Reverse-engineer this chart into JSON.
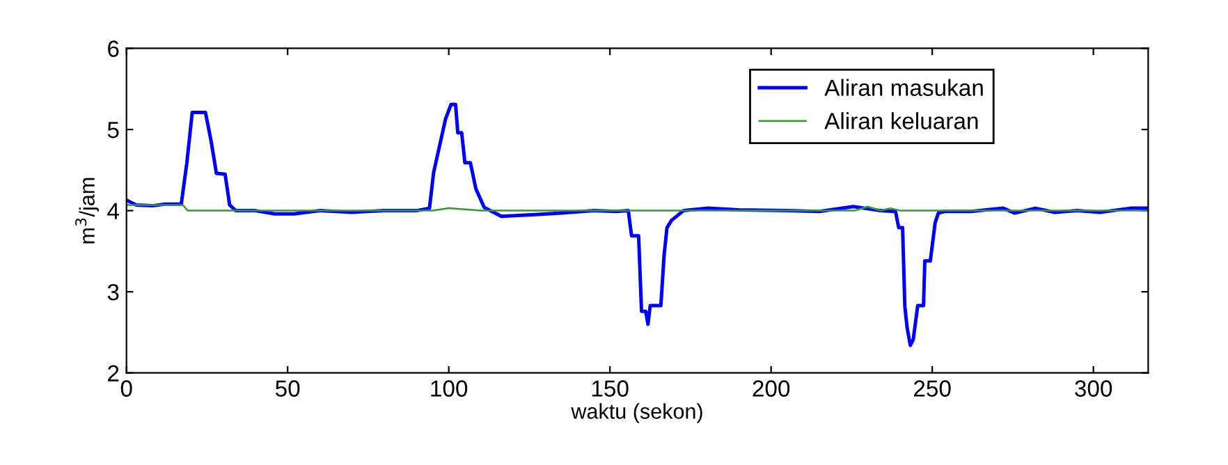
{
  "chart_data": {
    "type": "line",
    "xlabel": "waktu (sekon)",
    "ylabel": "m$^{3}$/jam",
    "xlim": [
      0,
      317
    ],
    "ylim": [
      2,
      6
    ],
    "xticks": [
      0,
      50,
      100,
      150,
      200,
      250,
      300
    ],
    "yticks": [
      2,
      3,
      4,
      5,
      6
    ],
    "grid": false,
    "legend": "top right",
    "line_style": "solid",
    "marker": "none",
    "series": [
      {
        "name": "Aliran masukan",
        "color": "#0000ff",
        "x": [
          0,
          3,
          8,
          12,
          17,
          18.7,
          20.4,
          24.5,
          26.2,
          27.9,
          30.6,
          32,
          33.9,
          40,
          46,
          52,
          60,
          70,
          80,
          90,
          94,
          95.3,
          99,
          100.7,
          102.1,
          102.8,
          104,
          105,
          106.7,
          108.4,
          111,
          116.3,
          126,
          135,
          145,
          152,
          155.7,
          156.7,
          158.9,
          159.8,
          161.1,
          161.8,
          162.5,
          165.8,
          166.8,
          167.7,
          169.1,
          172.8,
          180.5,
          190,
          205,
          215,
          225.5,
          234,
          238.6,
          239.6,
          240.8,
          241.5,
          242.2,
          243.2,
          244.1,
          245.5,
          247.3,
          247.7,
          249.4,
          250.9,
          251.9,
          253.7,
          262,
          272,
          275.6,
          282,
          288,
          295,
          302,
          311.5,
          317
        ],
        "values": [
          4.13,
          4.07,
          4.06,
          4.08,
          4.08,
          4.58,
          5.21,
          5.21,
          4.87,
          4.46,
          4.45,
          4.07,
          4.0,
          4.0,
          3.96,
          3.96,
          4.0,
          3.98,
          4.0,
          4.0,
          4.03,
          4.47,
          5.13,
          5.31,
          5.31,
          4.96,
          4.96,
          4.59,
          4.59,
          4.27,
          4.04,
          3.93,
          3.95,
          3.97,
          4.0,
          3.99,
          4.0,
          3.69,
          3.69,
          2.76,
          2.76,
          2.6,
          2.83,
          2.83,
          3.45,
          3.79,
          3.88,
          4.0,
          4.03,
          4.01,
          4.0,
          3.99,
          4.05,
          4.0,
          3.99,
          3.79,
          3.79,
          2.82,
          2.56,
          2.34,
          2.41,
          2.83,
          2.83,
          3.38,
          3.38,
          3.85,
          3.97,
          3.99,
          3.99,
          4.03,
          3.97,
          4.03,
          3.98,
          4.0,
          3.98,
          4.03,
          4.03
        ]
      },
      {
        "name": "Aliran keluaran",
        "color": "#2ca02c",
        "x": [
          0,
          17.5,
          19,
          95,
          100,
          110,
          226,
          230,
          234,
          237,
          240,
          317
        ],
        "values": [
          4.07,
          4.07,
          4.0,
          4.0,
          4.03,
          4.0,
          4.0,
          4.05,
          4.0,
          4.03,
          4.0,
          4.0
        ]
      }
    ]
  }
}
